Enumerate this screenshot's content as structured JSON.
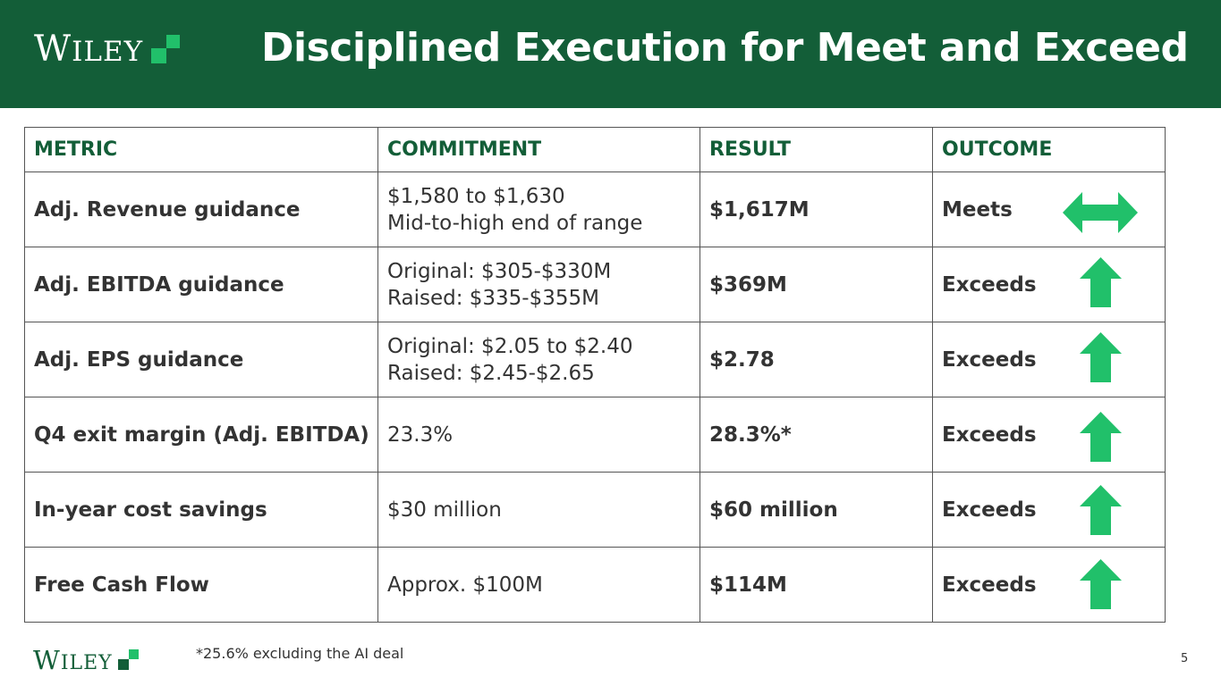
{
  "brand": {
    "logo_text": "WILEY",
    "logo_text_first": "W",
    "logo_text_rest": "ILEY",
    "header_color": "#135e38",
    "accent_green": "#21c06a"
  },
  "header": {
    "title": "Disciplined Execution for Meet and Exceed"
  },
  "table": {
    "columns": [
      "METRIC",
      "COMMITMENT",
      "RESULT",
      "OUTCOME"
    ],
    "rows": [
      {
        "metric": "Adj. Revenue guidance",
        "commitment_line1": "$1,580 to $1,630",
        "commitment_line2": "Mid-to-high end of range",
        "result": "$1,617M",
        "outcome": "Meets",
        "icon": "double-arrow-icon"
      },
      {
        "metric": "Adj. EBITDA guidance",
        "commitment_line1": "Original: $305-$330M",
        "commitment_line2": "Raised: $335-$355M",
        "result": "$369M",
        "outcome": "Exceeds",
        "icon": "up-arrow-icon"
      },
      {
        "metric": "Adj. EPS guidance",
        "commitment_line1": "Original: $2.05 to $2.40",
        "commitment_line2": "Raised: $2.45-$2.65",
        "result": "$2.78",
        "outcome": "Exceeds",
        "icon": "up-arrow-icon"
      },
      {
        "metric": "Q4 exit margin (Adj. EBITDA)",
        "commitment_line1": "23.3%",
        "commitment_line2": "",
        "result": "28.3%*",
        "outcome": "Exceeds",
        "icon": "up-arrow-icon"
      },
      {
        "metric": "In-year cost savings",
        "commitment_line1": "$30 million",
        "commitment_line2": "",
        "result": "$60 million",
        "outcome": "Exceeds",
        "icon": "up-arrow-icon"
      },
      {
        "metric": "Free Cash Flow",
        "commitment_line1": "Approx. $100M",
        "commitment_line2": "",
        "result": "$114M",
        "outcome": "Exceeds",
        "icon": "up-arrow-icon"
      }
    ]
  },
  "footer": {
    "footnote": "*25.6% excluding the AI deal",
    "page_number": "5"
  }
}
